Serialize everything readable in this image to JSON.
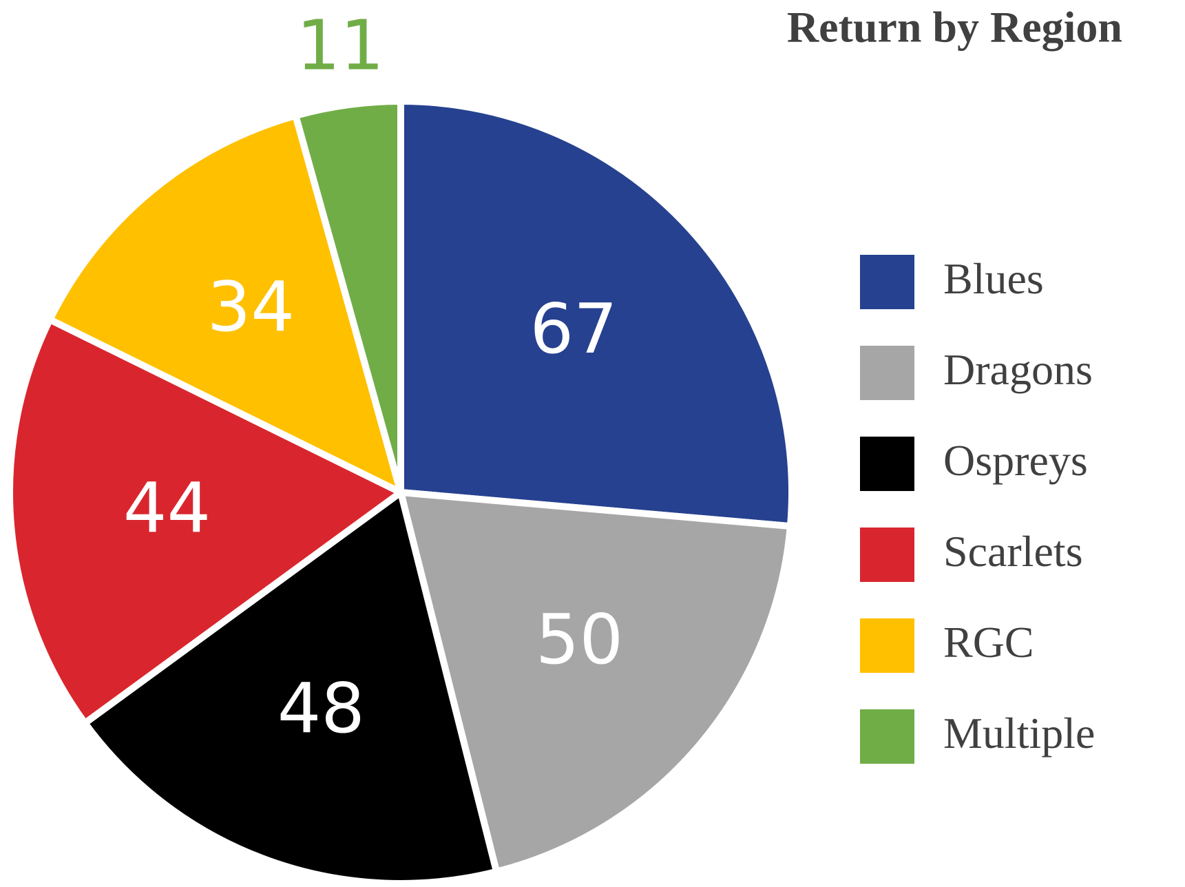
{
  "chart_data": {
    "type": "pie",
    "title": "Return by Region",
    "categories": [
      "Blues",
      "Dragons",
      "Ospreys",
      "Scarlets",
      "RGC",
      "Multiple"
    ],
    "values": [
      67,
      50,
      48,
      44,
      34,
      11
    ],
    "colors": [
      "#26418f",
      "#a6a6a6",
      "#000000",
      "#d9262e",
      "#ffc000",
      "#70ad47"
    ],
    "legend": "right"
  }
}
